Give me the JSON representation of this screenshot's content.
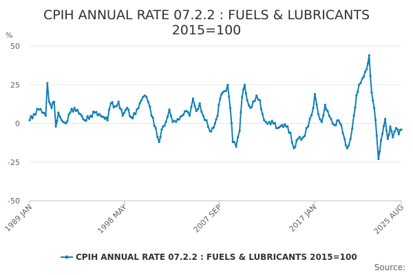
{
  "chart_data": {
    "type": "line",
    "title_line1": "CPIH ANNUAL RATE 07.2.2 : FUELS & LUBRICANTS",
    "title_line2": "2015=100",
    "ylabel": "%",
    "ylim": [
      -50,
      50
    ],
    "yticks": [
      "50",
      "25",
      "0",
      "-25",
      "-50"
    ],
    "ytick_values": [
      50,
      25,
      0,
      -25,
      -50
    ],
    "xlim": [
      "1989-01",
      "2025-08"
    ],
    "xticks": [
      {
        "label": "1989 JAN",
        "date": "1989-01"
      },
      {
        "label": "1998 MAY",
        "date": "1998-05"
      },
      {
        "label": "2007 SEP",
        "date": "2007-09"
      },
      {
        "label": "2017 JAN",
        "date": "2017-01"
      },
      {
        "label": "2025 AUG",
        "date": "2025-08"
      }
    ],
    "grid": true,
    "legend_position": "bottom",
    "color": "#0f7fb7",
    "series": [
      {
        "name": "CPIH ANNUAL RATE 07.2.2 : FUELS & LUBRICANTS 2015=100",
        "points": [
          [
            "1989-01",
            2
          ],
          [
            "1989-06",
            6
          ],
          [
            "1989-12",
            9
          ],
          [
            "1990-04",
            7
          ],
          [
            "1990-08",
            5
          ],
          [
            "1990-10",
            26
          ],
          [
            "1990-12",
            14
          ],
          [
            "1991-03",
            10
          ],
          [
            "1991-06",
            14
          ],
          [
            "1991-08",
            -2
          ],
          [
            "1991-11",
            7
          ],
          [
            "1992-03",
            2
          ],
          [
            "1992-08",
            0
          ],
          [
            "1993-01",
            7
          ],
          [
            "1993-06",
            10
          ],
          [
            "1994-01",
            6
          ],
          [
            "1994-06",
            2
          ],
          [
            "1995-01",
            5
          ],
          [
            "1995-06",
            7
          ],
          [
            "1996-01",
            5
          ],
          [
            "1996-06",
            3
          ],
          [
            "1996-09",
            2
          ],
          [
            "1997-01",
            13
          ],
          [
            "1997-06",
            11
          ],
          [
            "1997-10",
            14
          ],
          [
            "1998-03",
            5
          ],
          [
            "1998-08",
            10
          ],
          [
            "1999-01",
            4
          ],
          [
            "1999-06",
            6
          ],
          [
            "2000-01",
            15
          ],
          [
            "2000-05",
            18
          ],
          [
            "2000-09",
            14
          ],
          [
            "2001-01",
            5
          ],
          [
            "2001-06",
            -3
          ],
          [
            "2001-10",
            -12
          ],
          [
            "2002-01",
            -4
          ],
          [
            "2002-06",
            1
          ],
          [
            "2002-10",
            9
          ],
          [
            "2003-02",
            1
          ],
          [
            "2003-06",
            1
          ],
          [
            "2004-01",
            5
          ],
          [
            "2004-06",
            8
          ],
          [
            "2004-10",
            5
          ],
          [
            "2005-02",
            16
          ],
          [
            "2005-06",
            8
          ],
          [
            "2005-10",
            13
          ],
          [
            "2006-02",
            5
          ],
          [
            "2006-06",
            2
          ],
          [
            "2006-10",
            -5
          ],
          [
            "2007-01",
            -3
          ],
          [
            "2007-04",
            0
          ],
          [
            "2007-07",
            5
          ],
          [
            "2007-10",
            16
          ],
          [
            "2008-01",
            20
          ],
          [
            "2008-05",
            21
          ],
          [
            "2008-07",
            25
          ],
          [
            "2008-10",
            10
          ],
          [
            "2009-01",
            -12
          ],
          [
            "2009-05",
            -15
          ],
          [
            "2009-09",
            -5
          ],
          [
            "2009-12",
            17
          ],
          [
            "2010-03",
            25
          ],
          [
            "2010-06",
            15
          ],
          [
            "2010-10",
            10
          ],
          [
            "2011-01",
            14
          ],
          [
            "2011-05",
            18
          ],
          [
            "2011-09",
            15
          ],
          [
            "2011-12",
            6
          ],
          [
            "2012-04",
            1
          ],
          [
            "2012-08",
            1
          ],
          [
            "2013-01",
            0
          ],
          [
            "2013-06",
            -3
          ],
          [
            "2013-11",
            -1
          ],
          [
            "2014-04",
            -2
          ],
          [
            "2014-09",
            -6
          ],
          [
            "2015-01",
            -16
          ],
          [
            "2015-06",
            -10
          ],
          [
            "2015-12",
            -9
          ],
          [
            "2016-06",
            -2
          ],
          [
            "2016-12",
            10
          ],
          [
            "2017-02",
            19
          ],
          [
            "2017-06",
            6
          ],
          [
            "2017-10",
            1
          ],
          [
            "2018-02",
            12
          ],
          [
            "2018-05",
            8
          ],
          [
            "2018-09",
            3
          ],
          [
            "2019-01",
            -1
          ],
          [
            "2019-06",
            2
          ],
          [
            "2019-09",
            -1
          ],
          [
            "2020-01",
            -10
          ],
          [
            "2020-04",
            -16
          ],
          [
            "2020-08",
            -10
          ],
          [
            "2020-12",
            5
          ],
          [
            "2021-03",
            18
          ],
          [
            "2021-06",
            25
          ],
          [
            "2021-10",
            29
          ],
          [
            "2022-03",
            35
          ],
          [
            "2022-06",
            44
          ],
          [
            "2022-09",
            20
          ],
          [
            "2022-12",
            10
          ],
          [
            "2023-03",
            -8
          ],
          [
            "2023-05",
            -23
          ],
          [
            "2023-08",
            -11
          ],
          [
            "2024-01",
            3
          ],
          [
            "2024-04",
            -10
          ],
          [
            "2024-07",
            -2
          ],
          [
            "2024-10",
            -9
          ],
          [
            "2025-02",
            -3
          ],
          [
            "2025-05",
            -7
          ],
          [
            "2025-08",
            -4
          ]
        ]
      }
    ]
  },
  "footer": {
    "source_label": "Source:"
  }
}
